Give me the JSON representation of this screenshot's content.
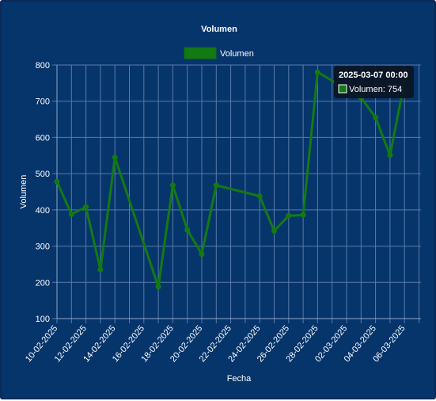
{
  "colors": {
    "background": "#06356c",
    "grid": "#5a7aa8",
    "line": "#137a13",
    "tooltip_bg": "#0b1524"
  },
  "chart_data": {
    "type": "line",
    "title": "Volumen",
    "xlabel": "Fecha",
    "ylabel": "Volumen",
    "legend": {
      "position": "top",
      "entries": [
        "Volumen"
      ]
    },
    "grid": true,
    "ylim": [
      100,
      800
    ],
    "y_ticks": [
      "800",
      "700",
      "600",
      "500",
      "400",
      "300",
      "200",
      "100"
    ],
    "x_ticks": [
      "10-02-2025",
      "12-02-2025",
      "14-02-2025",
      "16-02-2025",
      "18-02-2025",
      "20-02-2025",
      "22-02-2025",
      "24-02-2025",
      "26-02-2025",
      "28-02-2025",
      "02-03-2025",
      "04-03-2025",
      "06-03-2025"
    ],
    "series": [
      {
        "name": "Volumen",
        "points": [
          {
            "x": "2025-02-10",
            "y": 478
          },
          {
            "x": "2025-02-11",
            "y": 388
          },
          {
            "x": "2025-02-12",
            "y": 408
          },
          {
            "x": "2025-02-13",
            "y": 235
          },
          {
            "x": "2025-02-14",
            "y": 545
          },
          {
            "x": "2025-02-17",
            "y": 188
          },
          {
            "x": "2025-02-18",
            "y": 468
          },
          {
            "x": "2025-02-19",
            "y": 345
          },
          {
            "x": "2025-02-20",
            "y": 278
          },
          {
            "x": "2025-02-21",
            "y": 468
          },
          {
            "x": "2025-02-24",
            "y": 438
          },
          {
            "x": "2025-02-25",
            "y": 342
          },
          {
            "x": "2025-02-26",
            "y": 384
          },
          {
            "x": "2025-02-27",
            "y": 386
          },
          {
            "x": "2025-02-28",
            "y": 780
          },
          {
            "x": "2025-03-03",
            "y": 710
          },
          {
            "x": "2025-03-04",
            "y": 655
          },
          {
            "x": "2025-03-05",
            "y": 551
          },
          {
            "x": "2025-03-06",
            "y": 754
          }
        ]
      }
    ],
    "tooltip": {
      "title": "2025-03-07 00:00",
      "label": "Volumen: 754"
    }
  }
}
